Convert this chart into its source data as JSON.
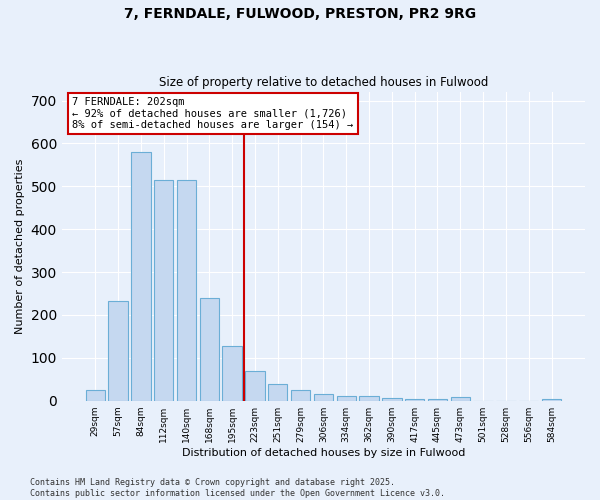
{
  "title": "7, FERNDALE, FULWOOD, PRESTON, PR2 9RG",
  "subtitle": "Size of property relative to detached houses in Fulwood",
  "xlabel": "Distribution of detached houses by size in Fulwood",
  "ylabel": "Number of detached properties",
  "categories": [
    "29sqm",
    "57sqm",
    "84sqm",
    "112sqm",
    "140sqm",
    "168sqm",
    "195sqm",
    "223sqm",
    "251sqm",
    "279sqm",
    "306sqm",
    "334sqm",
    "362sqm",
    "390sqm",
    "417sqm",
    "445sqm",
    "473sqm",
    "501sqm",
    "528sqm",
    "556sqm",
    "584sqm"
  ],
  "values": [
    25,
    233,
    580,
    515,
    515,
    240,
    127,
    70,
    40,
    25,
    15,
    10,
    10,
    6,
    5,
    5,
    8,
    0,
    0,
    0,
    5
  ],
  "bar_color": "#c5d8f0",
  "bar_edge_color": "#6baed6",
  "vline_color": "#cc0000",
  "vline_x": 6.5,
  "annotation_text": "7 FERNDALE: 202sqm\n← 92% of detached houses are smaller (1,726)\n8% of semi-detached houses are larger (154) →",
  "annotation_box_color": "#ffffff",
  "annotation_box_edge_color": "#cc0000",
  "ylim": [
    0,
    720
  ],
  "yticks": [
    0,
    100,
    200,
    300,
    400,
    500,
    600,
    700
  ],
  "bg_color": "#e8f0fb",
  "grid_color": "#ffffff",
  "footer_line1": "Contains HM Land Registry data © Crown copyright and database right 2025.",
  "footer_line2": "Contains public sector information licensed under the Open Government Licence v3.0."
}
